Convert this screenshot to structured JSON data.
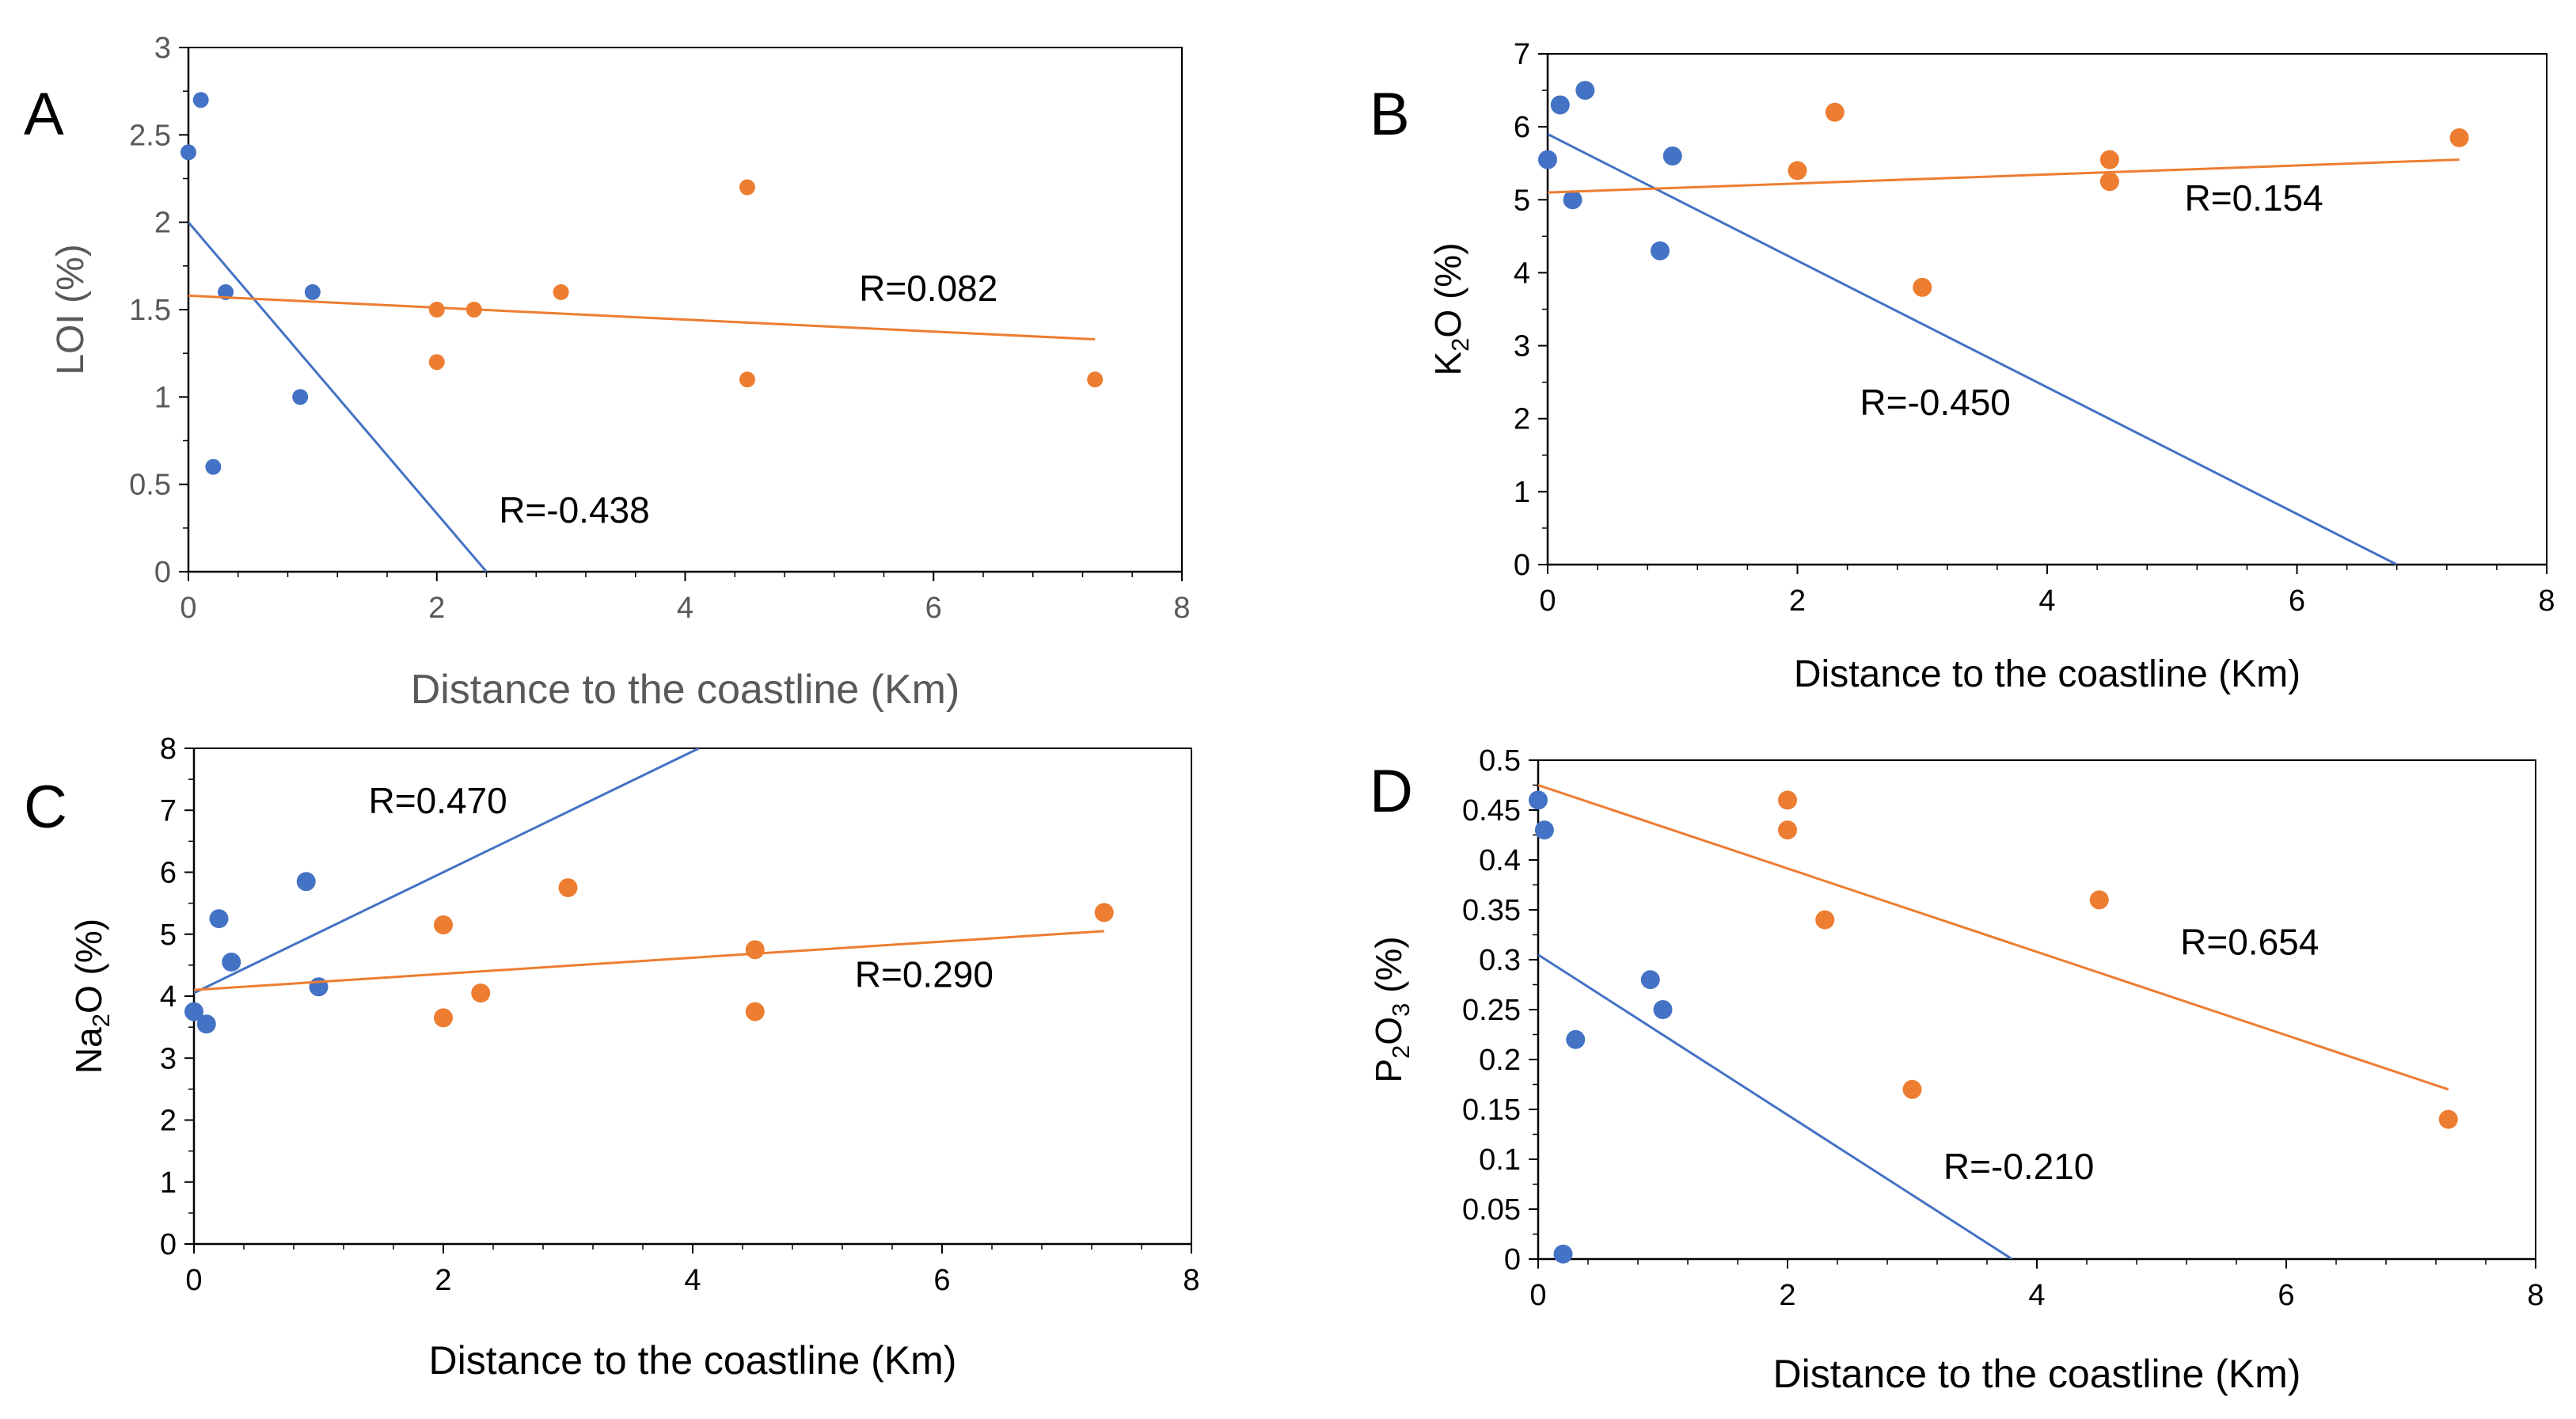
{
  "colors": {
    "blue": "#4472C4",
    "orange": "#ED7D31",
    "axis": "#000000",
    "frame": "#000000",
    "text_a": "#595959",
    "text": "#000000"
  },
  "chart_data": [
    {
      "id": "A",
      "type": "scatter",
      "panel_label": "A",
      "xlabel": "Distance to the coastline (Km)",
      "ylabel": [
        {
          "t": "LOI (%)"
        }
      ],
      "xlim": [
        0,
        8
      ],
      "ylim": [
        0,
        3
      ],
      "xticks": [
        0,
        2,
        4,
        6,
        8
      ],
      "yticks": [
        0,
        0.5,
        1,
        1.5,
        2,
        2.5,
        3
      ],
      "series": [
        {
          "color": "blue",
          "points": [
            [
              0,
              2.4
            ],
            [
              0.1,
              2.7
            ],
            [
              0.3,
              1.6
            ],
            [
              0.2,
              0.6
            ],
            [
              0.9,
              1.0
            ],
            [
              1.0,
              1.6
            ]
          ],
          "trend": [
            [
              0,
              2.0
            ],
            [
              2.4,
              0
            ]
          ]
        },
        {
          "color": "orange",
          "points": [
            [
              2.0,
              1.5
            ],
            [
              2.3,
              1.5
            ],
            [
              3.0,
              1.6
            ],
            [
              2.0,
              1.2
            ],
            [
              4.5,
              2.2
            ],
            [
              4.5,
              1.1
            ],
            [
              7.3,
              1.1
            ]
          ],
          "trend": [
            [
              0,
              1.58
            ],
            [
              7.3,
              1.33
            ]
          ]
        }
      ],
      "annotations": [
        {
          "text": "R=0.082",
          "x": 5.4,
          "y": 1.55
        },
        {
          "text": "R=-0.438",
          "x": 2.5,
          "y": 0.28
        }
      ]
    },
    {
      "id": "B",
      "type": "scatter",
      "panel_label": "B",
      "xlabel": "Distance to the coastline (Km)",
      "ylabel": [
        {
          "t": "K"
        },
        {
          "t": "2",
          "sub": true
        },
        {
          "t": "O (%)"
        }
      ],
      "xlim": [
        0,
        8
      ],
      "ylim": [
        0,
        7
      ],
      "xticks": [
        0,
        2,
        4,
        6,
        8
      ],
      "yticks": [
        0,
        1,
        2,
        3,
        4,
        5,
        6,
        7
      ],
      "series": [
        {
          "color": "blue",
          "points": [
            [
              0,
              5.55
            ],
            [
              0.1,
              6.3
            ],
            [
              0.3,
              6.5
            ],
            [
              0.2,
              5.0
            ],
            [
              1.0,
              5.6
            ],
            [
              0.9,
              4.3
            ]
          ],
          "trend": [
            [
              0,
              5.9
            ],
            [
              6.8,
              0
            ]
          ]
        },
        {
          "color": "orange",
          "points": [
            [
              2.0,
              5.4
            ],
            [
              2.3,
              6.2
            ],
            [
              3.0,
              3.8
            ],
            [
              4.5,
              5.55
            ],
            [
              4.5,
              5.25
            ],
            [
              7.3,
              5.85
            ]
          ],
          "trend": [
            [
              0,
              5.1
            ],
            [
              7.3,
              5.55
            ]
          ]
        }
      ],
      "annotations": [
        {
          "text": "R=0.154",
          "x": 5.1,
          "y": 4.85
        },
        {
          "text": "R=-0.450",
          "x": 2.5,
          "y": 2.05
        }
      ]
    },
    {
      "id": "C",
      "type": "scatter",
      "panel_label": "C",
      "xlabel": "Distance to the coastline (Km)",
      "ylabel": [
        {
          "t": "Na"
        },
        {
          "t": "2",
          "sub": true
        },
        {
          "t": "O (%)"
        }
      ],
      "xlim": [
        0,
        8
      ],
      "ylim": [
        0,
        8
      ],
      "xticks": [
        0,
        2,
        4,
        6,
        8
      ],
      "yticks": [
        0,
        1,
        2,
        3,
        4,
        5,
        6,
        7,
        8
      ],
      "series": [
        {
          "color": "blue",
          "points": [
            [
              0,
              3.75
            ],
            [
              0.1,
              3.55
            ],
            [
              0.2,
              5.25
            ],
            [
              0.3,
              4.55
            ],
            [
              0.9,
              5.85
            ],
            [
              1.0,
              4.15
            ]
          ],
          "trend": [
            [
              0,
              4.05
            ],
            [
              4.05,
              8.0
            ]
          ]
        },
        {
          "color": "orange",
          "points": [
            [
              2.0,
              5.15
            ],
            [
              2.0,
              3.65
            ],
            [
              2.3,
              4.05
            ],
            [
              3.0,
              5.75
            ],
            [
              4.5,
              4.75
            ],
            [
              4.5,
              3.75
            ],
            [
              7.3,
              5.35
            ]
          ],
          "trend": [
            [
              0,
              4.1
            ],
            [
              7.3,
              5.05
            ]
          ]
        }
      ],
      "annotations": [
        {
          "text": "R=0.470",
          "x": 1.4,
          "y": 6.95
        },
        {
          "text": "R=0.290",
          "x": 5.3,
          "y": 4.15
        }
      ]
    },
    {
      "id": "D",
      "type": "scatter",
      "panel_label": "D",
      "xlabel": "Distance to the coastline (Km)",
      "ylabel": [
        {
          "t": "P"
        },
        {
          "t": "2",
          "sub": true
        },
        {
          "t": "O"
        },
        {
          "t": "3",
          "sub": true
        },
        {
          "t": " (%)"
        }
      ],
      "xlim": [
        0,
        8
      ],
      "ylim": [
        0,
        0.5
      ],
      "xticks": [
        0,
        2,
        4,
        6,
        8
      ],
      "yticks": [
        0,
        0.05,
        0.1,
        0.15,
        0.2,
        0.25,
        0.3,
        0.35,
        0.4,
        0.45,
        0.5
      ],
      "series": [
        {
          "color": "blue",
          "points": [
            [
              0,
              0.46
            ],
            [
              0.05,
              0.43
            ],
            [
              0.3,
              0.22
            ],
            [
              0.2,
              0.005
            ],
            [
              0.9,
              0.28
            ],
            [
              1.0,
              0.25
            ]
          ],
          "trend": [
            [
              0,
              0.305
            ],
            [
              3.8,
              0
            ]
          ]
        },
        {
          "color": "orange",
          "points": [
            [
              2.0,
              0.46
            ],
            [
              2.0,
              0.43
            ],
            [
              2.3,
              0.34
            ],
            [
              3.0,
              0.17
            ],
            [
              4.5,
              0.36
            ],
            [
              7.3,
              0.14
            ]
          ],
          "trend": [
            [
              0,
              0.475
            ],
            [
              7.3,
              0.17
            ]
          ]
        }
      ],
      "annotations": [
        {
          "text": "R=0.654",
          "x": 5.15,
          "y": 0.305
        },
        {
          "text": "R=-0.210",
          "x": 3.25,
          "y": 0.08
        }
      ]
    }
  ]
}
